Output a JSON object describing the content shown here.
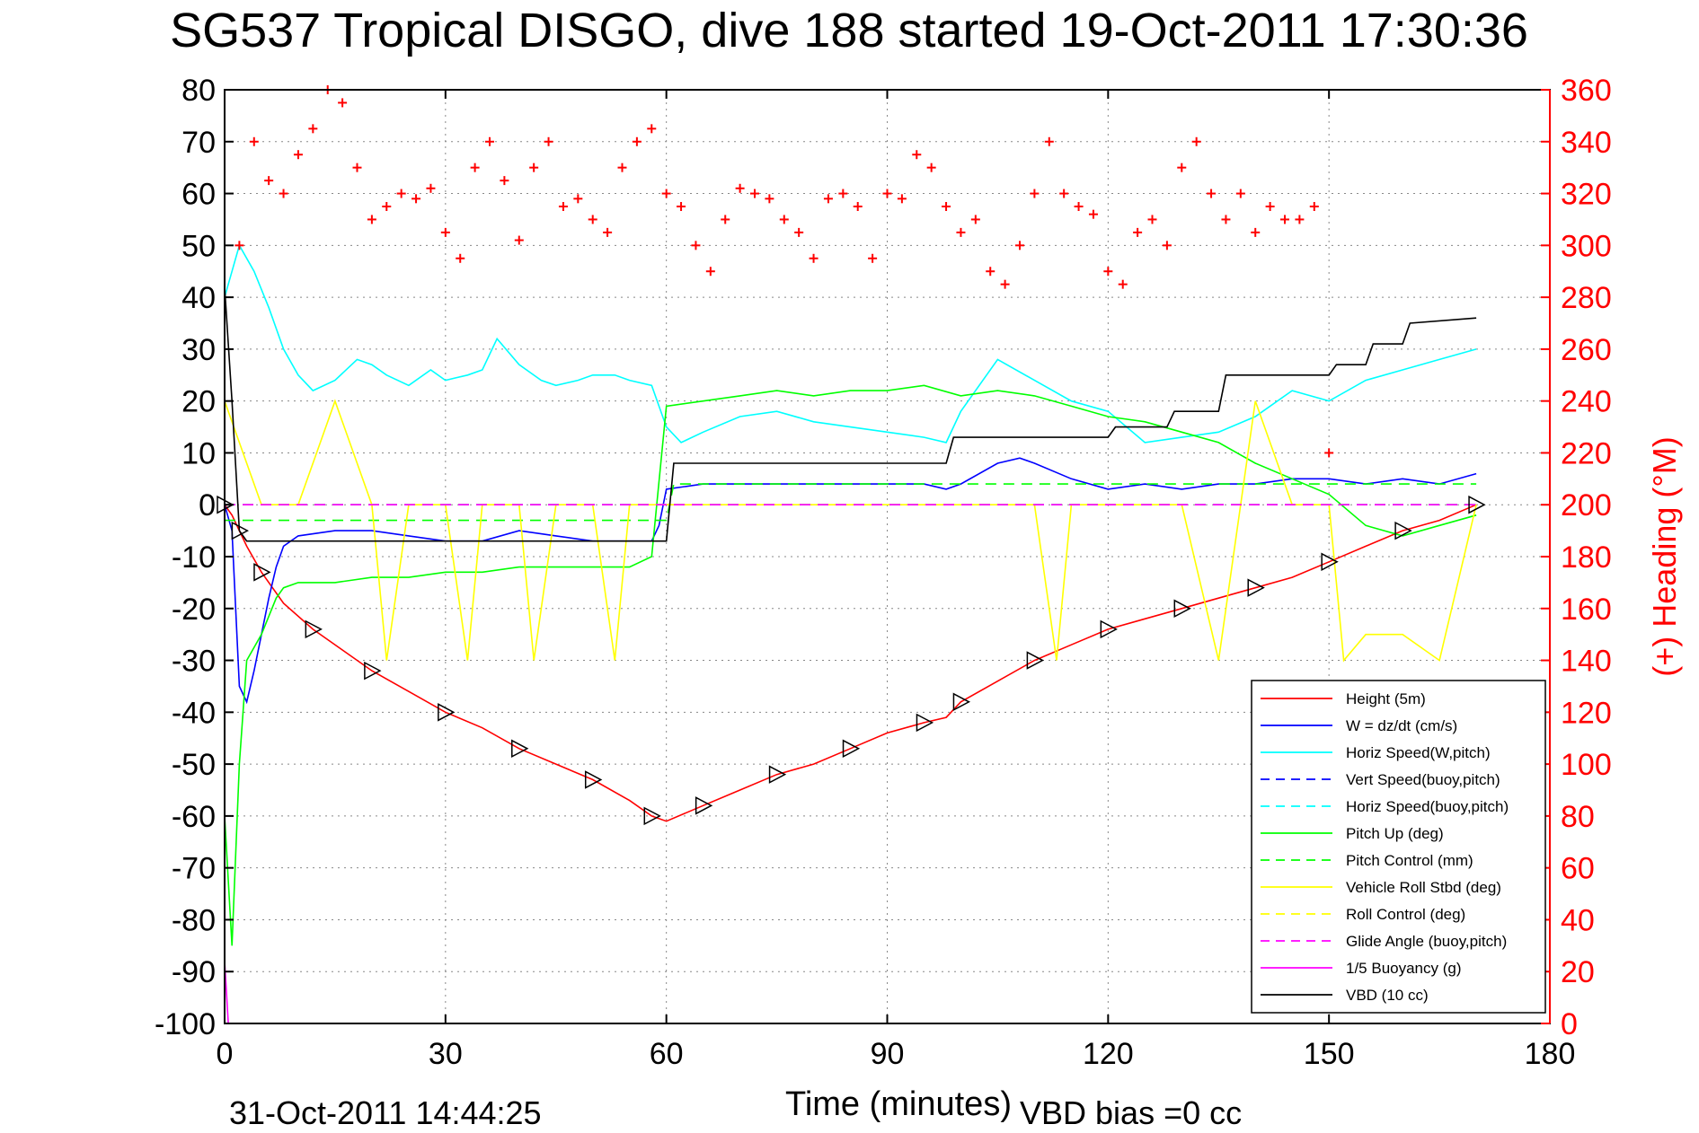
{
  "chart_data": {
    "type": "line",
    "title": "SG537 Tropical DISGO, dive 188 started 19-Oct-2011 17:30:36",
    "xlabel": "Time (minutes)",
    "ylabel_right": "(+) Heading (°M)",
    "footer_left": "31-Oct-2011 14:44:25",
    "footer_right": "VBD bias =0 cc",
    "xlim": [
      0,
      180
    ],
    "ylim_left": [
      -100,
      80
    ],
    "ylim_right": [
      0,
      360
    ],
    "xticks": [
      0,
      30,
      60,
      90,
      120,
      150,
      180
    ],
    "yticks_left": [
      -100,
      -90,
      -80,
      -70,
      -60,
      -50,
      -40,
      -30,
      -20,
      -10,
      0,
      10,
      20,
      30,
      40,
      50,
      60,
      70,
      80
    ],
    "yticks_right": [
      0,
      20,
      40,
      60,
      80,
      100,
      120,
      140,
      160,
      180,
      200,
      220,
      240,
      260,
      280,
      300,
      320,
      340,
      360
    ],
    "grid": true,
    "legend_position": "bottom-right",
    "colors": {
      "red": "#ff0000",
      "blue": "#0000ff",
      "cyan": "#00ffff",
      "green": "#00ff00",
      "yellow": "#ffff00",
      "magenta": "#ff00ff",
      "black": "#000000"
    },
    "series": [
      {
        "name": "Height (5m)",
        "color": "#ff0000",
        "dash": "solid",
        "axis": "left",
        "x": [
          0,
          1,
          2,
          3,
          5,
          8,
          12,
          16,
          20,
          25,
          30,
          35,
          40,
          45,
          50,
          55,
          58,
          60,
          65,
          70,
          75,
          80,
          85,
          90,
          95,
          98,
          100,
          105,
          110,
          115,
          120,
          125,
          130,
          135,
          140,
          145,
          150,
          155,
          160,
          165,
          170
        ],
        "y": [
          0,
          -2,
          -5,
          -8,
          -13,
          -19,
          -24,
          -28,
          -32,
          -36,
          -40,
          -43,
          -47,
          -50,
          -53,
          -57,
          -60,
          -61,
          -58,
          -55,
          -52,
          -50,
          -47,
          -44,
          -42,
          -41,
          -38,
          -34,
          -30,
          -27,
          -24,
          -22,
          -20,
          -18,
          -16,
          -14,
          -11,
          -8,
          -5,
          -3,
          0
        ]
      },
      {
        "name": "W = dz/dt (cm/s)",
        "color": "#0000ff",
        "dash": "solid",
        "axis": "left",
        "x": [
          0,
          1,
          1.5,
          2,
          3,
          4,
          5,
          6,
          7,
          8,
          10,
          15,
          20,
          25,
          30,
          35,
          40,
          45,
          50,
          55,
          58,
          59,
          60,
          65,
          70,
          80,
          90,
          95,
          98,
          100,
          105,
          108,
          110,
          115,
          120,
          125,
          130,
          135,
          140,
          145,
          150,
          155,
          160,
          165,
          170
        ],
        "y": [
          0,
          -5,
          -20,
          -35,
          -38,
          -32,
          -25,
          -18,
          -12,
          -8,
          -6,
          -5,
          -5,
          -6,
          -7,
          -7,
          -5,
          -6,
          -7,
          -7,
          -7,
          -4,
          3,
          4,
          4,
          4,
          4,
          4,
          3,
          4,
          8,
          9,
          8,
          5,
          3,
          4,
          3,
          4,
          4,
          5,
          5,
          4,
          5,
          4,
          6
        ]
      },
      {
        "name": "Horiz Speed(W,pitch)",
        "color": "#00ffff",
        "dash": "solid",
        "axis": "left",
        "x": [
          0,
          2,
          4,
          6,
          8,
          10,
          12,
          15,
          18,
          20,
          22,
          25,
          28,
          30,
          33,
          35,
          37,
          40,
          43,
          45,
          48,
          50,
          53,
          55,
          58,
          60,
          62,
          65,
          70,
          75,
          80,
          85,
          90,
          95,
          98,
          100,
          105,
          110,
          115,
          120,
          125,
          130,
          135,
          140,
          145,
          150,
          155,
          160,
          165,
          170
        ],
        "y": [
          40,
          50,
          45,
          38,
          30,
          25,
          22,
          24,
          28,
          27,
          25,
          23,
          26,
          24,
          25,
          26,
          32,
          27,
          24,
          23,
          24,
          25,
          25,
          24,
          23,
          15,
          12,
          14,
          17,
          18,
          16,
          15,
          14,
          13,
          12,
          18,
          28,
          24,
          20,
          18,
          12,
          13,
          14,
          17,
          22,
          20,
          24,
          26,
          28,
          30
        ]
      },
      {
        "name": "Vert Speed(buoy,pitch)",
        "color": "#0000ff",
        "dash": "dashed",
        "axis": "left",
        "x": [
          0,
          3,
          60,
          170
        ],
        "y": [
          0,
          0,
          0,
          0
        ]
      },
      {
        "name": "Horiz Speed(buoy,pitch)",
        "color": "#00ffff",
        "dash": "dashed",
        "axis": "left",
        "x": [
          0,
          3,
          60,
          170
        ],
        "y": [
          0,
          0,
          0,
          0
        ]
      },
      {
        "name": "Pitch Up (deg)",
        "color": "#00ff00",
        "dash": "solid",
        "axis": "left",
        "x": [
          0,
          1,
          2,
          3,
          5,
          7,
          8,
          10,
          15,
          20,
          25,
          30,
          35,
          40,
          45,
          50,
          55,
          58,
          60,
          65,
          70,
          75,
          80,
          85,
          90,
          95,
          100,
          105,
          110,
          115,
          120,
          125,
          130,
          135,
          140,
          145,
          150,
          155,
          160,
          165,
          170
        ],
        "y": [
          -60,
          -85,
          -50,
          -30,
          -25,
          -18,
          -16,
          -15,
          -15,
          -14,
          -14,
          -13,
          -13,
          -12,
          -12,
          -12,
          -12,
          -10,
          19,
          20,
          21,
          22,
          21,
          22,
          22,
          23,
          21,
          22,
          21,
          19,
          17,
          16,
          14,
          12,
          8,
          5,
          2,
          -4,
          -6,
          -4,
          -2
        ]
      },
      {
        "name": "Pitch Control (mm)",
        "color": "#00ff00",
        "dash": "dashed",
        "axis": "left",
        "x": [
          0,
          1,
          3,
          60,
          61,
          170
        ],
        "y": [
          -3,
          -3,
          -3,
          -3,
          4,
          4
        ]
      },
      {
        "name": "Vehicle Roll Stbd (deg)",
        "color": "#ffff00",
        "dash": "solid",
        "axis": "left",
        "x": [
          0,
          5,
          10,
          15,
          20,
          22,
          25,
          30,
          33,
          35,
          40,
          42,
          45,
          50,
          53,
          55,
          60,
          70,
          80,
          90,
          100,
          110,
          113,
          115,
          120,
          130,
          135,
          140,
          145,
          150,
          152,
          155,
          160,
          165,
          170
        ],
        "y": [
          20,
          0,
          0,
          20,
          0,
          -30,
          0,
          0,
          -30,
          0,
          0,
          -30,
          0,
          0,
          -30,
          0,
          0,
          0,
          0,
          0,
          0,
          0,
          -30,
          0,
          0,
          0,
          -30,
          20,
          0,
          0,
          -30,
          -25,
          -25,
          -30,
          0
        ]
      },
      {
        "name": "Roll Control (deg)",
        "color": "#ffff00",
        "dash": "dashed",
        "axis": "left",
        "x": [
          0,
          170
        ],
        "y": [
          0,
          0
        ]
      },
      {
        "name": "Glide Angle (buoy,pitch)",
        "color": "#ff00ff",
        "dash": "dashed",
        "axis": "left",
        "x": [
          0,
          170
        ],
        "y": [
          0,
          0
        ]
      },
      {
        "name": "1/5 Buoyancy (g)",
        "color": "#ff00ff",
        "dash": "solid",
        "axis": "left",
        "x": [
          0,
          0.5,
          1
        ],
        "y": [
          -88,
          -100,
          -100
        ]
      },
      {
        "name": "VBD (10 cc)",
        "color": "#000000",
        "dash": "solid",
        "axis": "left",
        "x": [
          0,
          1,
          2,
          3,
          60,
          61,
          98,
          99,
          120,
          121,
          128,
          129,
          135,
          136,
          150,
          151,
          155,
          156,
          160,
          161,
          170
        ],
        "y": [
          42,
          20,
          -5,
          -7,
          -7,
          8,
          8,
          13,
          13,
          15,
          15,
          18,
          18,
          25,
          25,
          27,
          27,
          31,
          31,
          35,
          36
        ]
      },
      {
        "name": "(+) Heading (°M)",
        "color": "#ff0000",
        "dash": "plus-markers",
        "axis": "right",
        "x": [
          2,
          4,
          6,
          8,
          10,
          12,
          14,
          16,
          18,
          20,
          22,
          24,
          26,
          28,
          30,
          32,
          34,
          36,
          38,
          40,
          42,
          44,
          46,
          48,
          50,
          52,
          54,
          56,
          58,
          60,
          62,
          64,
          66,
          68,
          70,
          72,
          74,
          76,
          78,
          80,
          82,
          84,
          86,
          88,
          90,
          92,
          94,
          96,
          98,
          100,
          102,
          104,
          106,
          108,
          110,
          112,
          114,
          116,
          118,
          120,
          122,
          124,
          126,
          128,
          130,
          132,
          134,
          136,
          138,
          140,
          142,
          144,
          146,
          148,
          150
        ],
        "y": [
          300,
          340,
          325,
          320,
          335,
          345,
          360,
          355,
          330,
          310,
          315,
          320,
          318,
          322,
          305,
          295,
          330,
          340,
          325,
          302,
          330,
          340,
          315,
          318,
          310,
          305,
          330,
          340,
          345,
          320,
          315,
          300,
          290,
          310,
          322,
          320,
          318,
          310,
          305,
          295,
          318,
          320,
          315,
          295,
          320,
          318,
          335,
          330,
          315,
          305,
          310,
          290,
          285,
          300,
          320,
          340,
          320,
          315,
          312,
          290,
          285,
          305,
          310,
          300,
          330,
          340,
          320,
          310,
          320,
          305,
          315,
          310,
          310,
          315,
          220
        ]
      }
    ]
  }
}
